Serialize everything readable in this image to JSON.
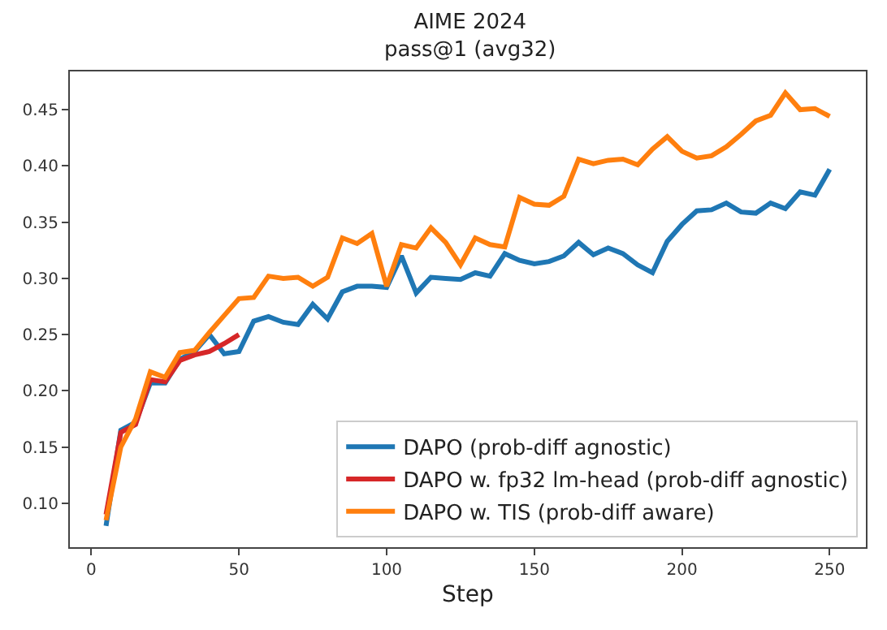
{
  "chart_data": {
    "type": "line",
    "title": "AIME 2024\npass@1 (avg32)",
    "xlabel": "Step",
    "xlim": [
      -7.25,
      262.25
    ],
    "xticks": [
      0,
      50,
      100,
      150,
      200,
      250
    ],
    "ylim": [
      0.061,
      0.484
    ],
    "yticks": [
      {
        "value": 0.1,
        "label": "0.10"
      },
      {
        "value": 0.15,
        "label": "0.15"
      },
      {
        "value": 0.2,
        "label": "0.20"
      },
      {
        "value": 0.25,
        "label": "0.25"
      },
      {
        "value": 0.3,
        "label": "0.30"
      },
      {
        "value": 0.35,
        "label": "0.35"
      },
      {
        "value": 0.4,
        "label": "0.40"
      },
      {
        "value": 0.45,
        "label": "0.45"
      }
    ],
    "legend": "bottom right",
    "line_style": "solid",
    "marker": "none",
    "series": [
      {
        "name": "DAPO (prob-diff agnostic)",
        "color": "#1f77b4",
        "x": [
          5,
          10,
          15,
          20,
          25,
          30,
          35,
          40,
          45,
          50,
          55,
          60,
          65,
          70,
          75,
          80,
          85,
          90,
          95,
          100,
          105,
          110,
          115,
          120,
          125,
          130,
          135,
          140,
          145,
          150,
          155,
          160,
          165,
          170,
          175,
          180,
          185,
          190,
          195,
          200,
          205,
          210,
          215,
          220,
          225,
          230,
          235,
          240,
          245,
          250
        ],
        "values": [
          0.08,
          0.165,
          0.172,
          0.207,
          0.207,
          0.228,
          0.235,
          0.25,
          0.233,
          0.235,
          0.262,
          0.266,
          0.261,
          0.259,
          0.277,
          0.264,
          0.288,
          0.293,
          0.293,
          0.292,
          0.32,
          0.287,
          0.301,
          0.3,
          0.299,
          0.305,
          0.302,
          0.322,
          0.316,
          0.313,
          0.315,
          0.32,
          0.332,
          0.321,
          0.327,
          0.322,
          0.312,
          0.305,
          0.333,
          0.348,
          0.36,
          0.361,
          0.367,
          0.359,
          0.358,
          0.367,
          0.362,
          0.377,
          0.374,
          0.397
        ]
      },
      {
        "name": "DAPO w. fp32 lm-head (prob-diff agnostic)",
        "color": "#d62728",
        "x": [
          5,
          10,
          15,
          20,
          25,
          30,
          35,
          40,
          45,
          50
        ],
        "values": [
          0.09,
          0.163,
          0.17,
          0.21,
          0.208,
          0.227,
          0.232,
          0.235,
          0.242,
          0.25
        ]
      },
      {
        "name": "DAPO w. TIS (prob-diff aware)",
        "color": "#ff7f0e",
        "x": [
          5,
          10,
          15,
          20,
          25,
          30,
          35,
          40,
          45,
          50,
          55,
          60,
          65,
          70,
          75,
          80,
          85,
          90,
          95,
          100,
          105,
          110,
          115,
          120,
          125,
          130,
          135,
          140,
          145,
          150,
          155,
          160,
          165,
          170,
          175,
          180,
          185,
          190,
          195,
          200,
          205,
          210,
          215,
          220,
          225,
          230,
          235,
          240,
          245,
          250
        ],
        "values": [
          0.085,
          0.15,
          0.175,
          0.217,
          0.212,
          0.234,
          0.236,
          0.252,
          0.267,
          0.282,
          0.283,
          0.302,
          0.3,
          0.301,
          0.293,
          0.301,
          0.336,
          0.331,
          0.34,
          0.293,
          0.33,
          0.327,
          0.345,
          0.332,
          0.312,
          0.336,
          0.33,
          0.328,
          0.372,
          0.366,
          0.365,
          0.373,
          0.406,
          0.402,
          0.405,
          0.406,
          0.401,
          0.415,
          0.426,
          0.413,
          0.407,
          0.409,
          0.417,
          0.428,
          0.44,
          0.445,
          0.465,
          0.45,
          0.451,
          0.444
        ]
      }
    ]
  }
}
